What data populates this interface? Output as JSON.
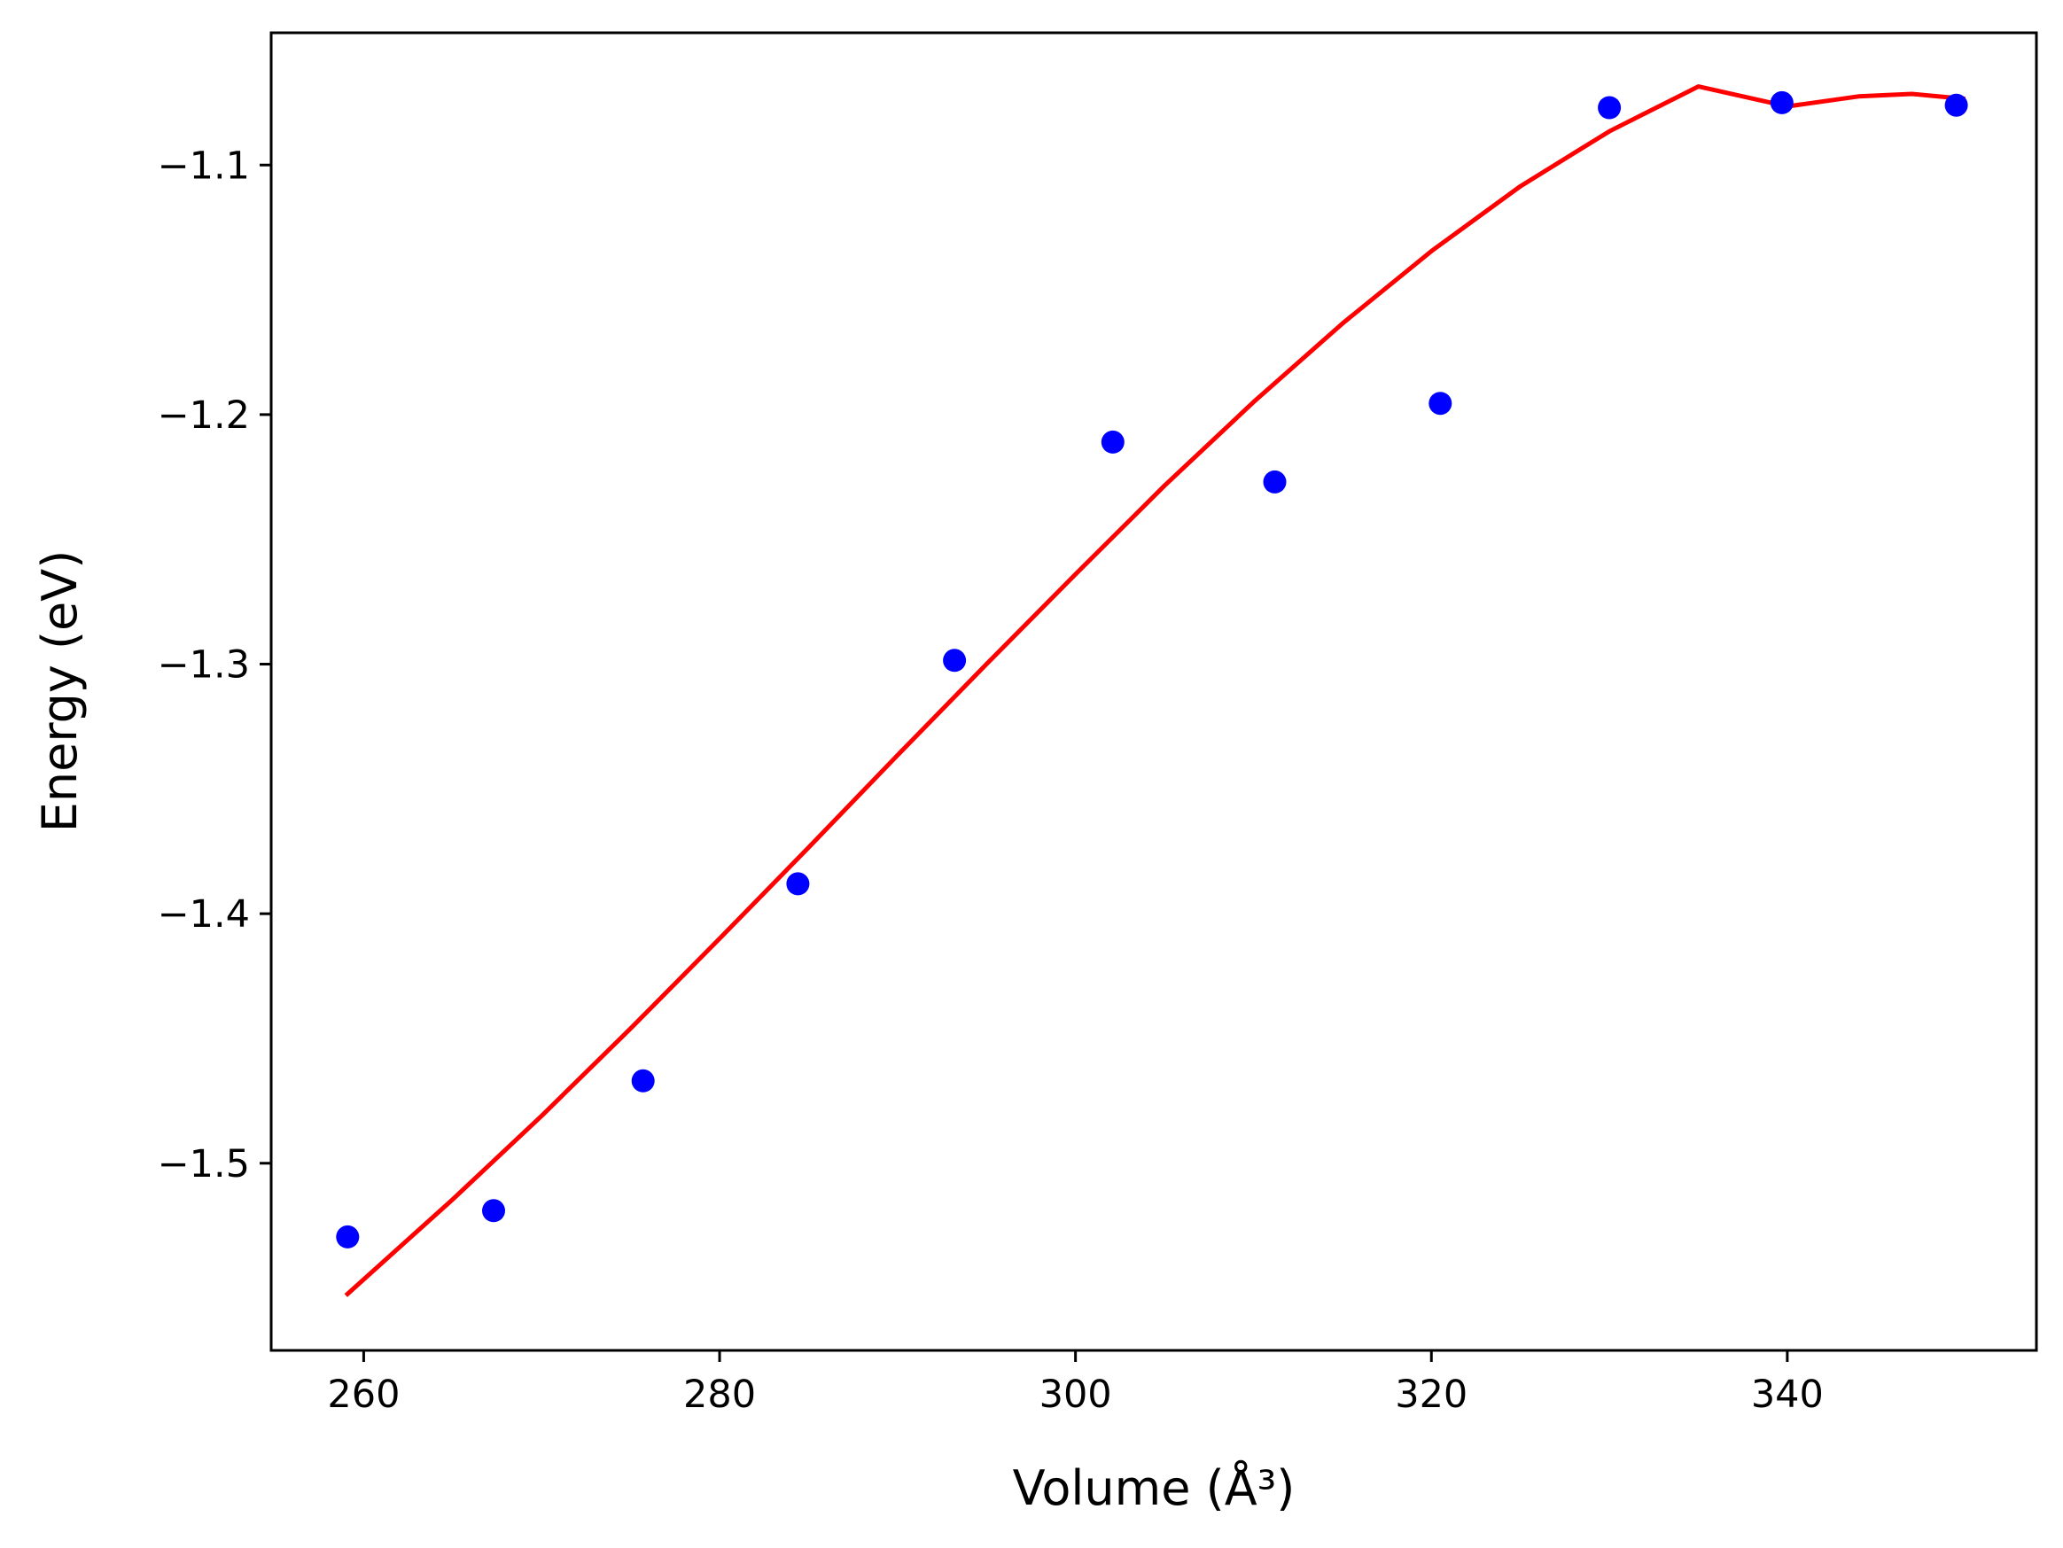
{
  "chart_data": {
    "type": "scatter",
    "xlabel": "Volume (Å³)",
    "ylabel": "Energy (eV)",
    "xlim": [
      254.8,
      354.0
    ],
    "ylim": [
      -1.575,
      -1.047
    ],
    "xticks": [
      {
        "value": 260,
        "label": "260"
      },
      {
        "value": 280,
        "label": "280"
      },
      {
        "value": 300,
        "label": "300"
      },
      {
        "value": 320,
        "label": "320"
      },
      {
        "value": 340,
        "label": "340"
      }
    ],
    "yticks": [
      {
        "value": -1.1,
        "label": "−1.1"
      },
      {
        "value": -1.2,
        "label": "−1.2"
      },
      {
        "value": -1.3,
        "label": "−1.3"
      },
      {
        "value": -1.4,
        "label": "−1.4"
      },
      {
        "value": -1.5,
        "label": "−1.5"
      }
    ],
    "grid": false,
    "series": [
      {
        "kind": "points",
        "color": "#0000ff",
        "x": [
          259.1,
          267.3,
          275.7,
          284.4,
          293.2,
          302.1,
          311.2,
          320.5,
          330.0,
          339.7,
          349.5
        ],
        "y": [
          -1.5295,
          -1.519,
          -1.467,
          -1.388,
          -1.2985,
          -1.211,
          -1.227,
          -1.1955,
          -1.077,
          -1.075,
          -1.076
        ]
      },
      {
        "kind": "fit-line",
        "color": "#ff0000",
        "x": [
          259.0,
          265.0,
          270.0,
          275.0,
          280.0,
          285.0,
          290.0,
          295.0,
          300.0,
          305.0,
          310.0,
          315.0,
          320.0,
          325.0,
          330.0,
          335.0,
          340.0,
          344.0,
          347.0,
          350.0
        ],
        "y": [
          -1.553,
          -1.5145,
          -1.481,
          -1.446,
          -1.41,
          -1.3735,
          -1.3365,
          -1.3,
          -1.264,
          -1.2285,
          -1.195,
          -1.1635,
          -1.1345,
          -1.1085,
          -1.0865,
          -1.0685,
          -1.0765,
          -1.0725,
          -1.0715,
          -1.0735
        ]
      }
    ]
  }
}
